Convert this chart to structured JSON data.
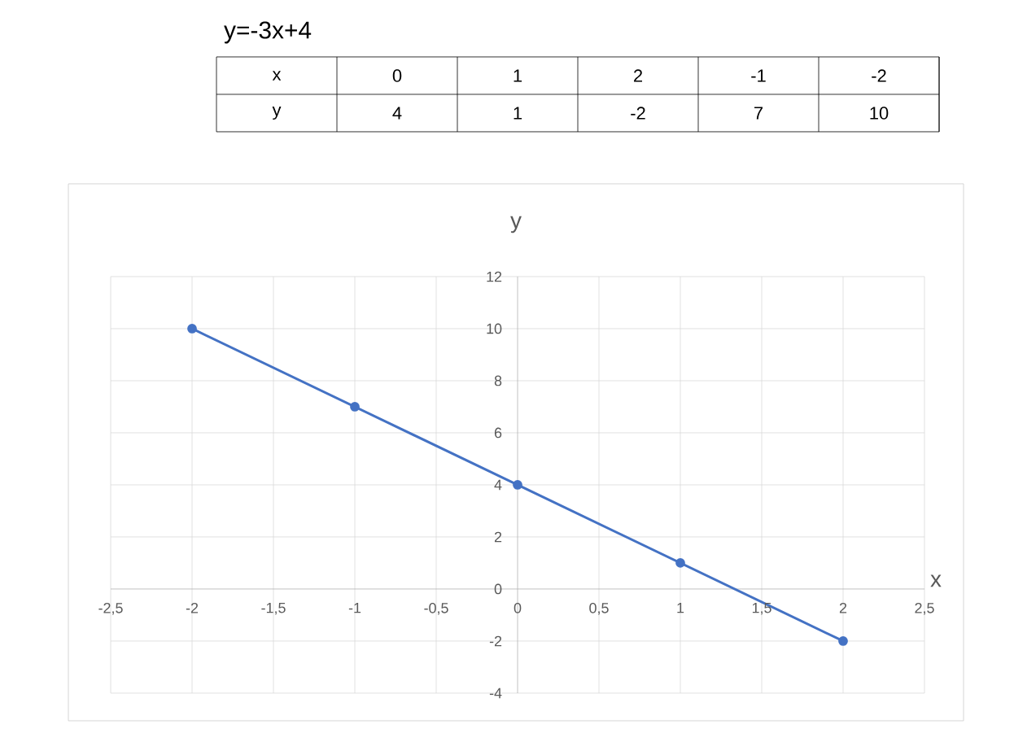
{
  "chart_data": {
    "type": "line",
    "title": "y",
    "xlabel": "x",
    "annotations": [
      "y=-3x+4",
      "x",
      "0",
      "1",
      "2",
      "-1",
      "-2",
      "y",
      "4",
      "1",
      "-2",
      "7",
      "10"
    ],
    "x": [
      0,
      1,
      2,
      -1,
      -2
    ],
    "values": [
      4,
      1,
      -2,
      7,
      10
    ],
    "color": "#4472c4",
    "marker": "circle",
    "grid": true,
    "xlim": [
      -2.5,
      2.5
    ],
    "xticks": [
      {
        "value": -2.5,
        "label": "-2,5"
      },
      {
        "value": -2,
        "label": "-2"
      },
      {
        "value": -1.5,
        "label": "-1,5"
      },
      {
        "value": -1,
        "label": "-1"
      },
      {
        "value": -0.5,
        "label": "-0,5"
      },
      {
        "value": 0,
        "label": "0"
      },
      {
        "value": 0.5,
        "label": "0,5"
      },
      {
        "value": 1,
        "label": "1"
      },
      {
        "value": 1.5,
        "label": "1,5"
      },
      {
        "value": 2,
        "label": "2"
      },
      {
        "value": 2.5,
        "label": "2,5"
      }
    ],
    "ylim": [
      -4,
      12
    ],
    "yticks": [
      -4,
      -2,
      0,
      2,
      4,
      6,
      8,
      10,
      12
    ]
  }
}
